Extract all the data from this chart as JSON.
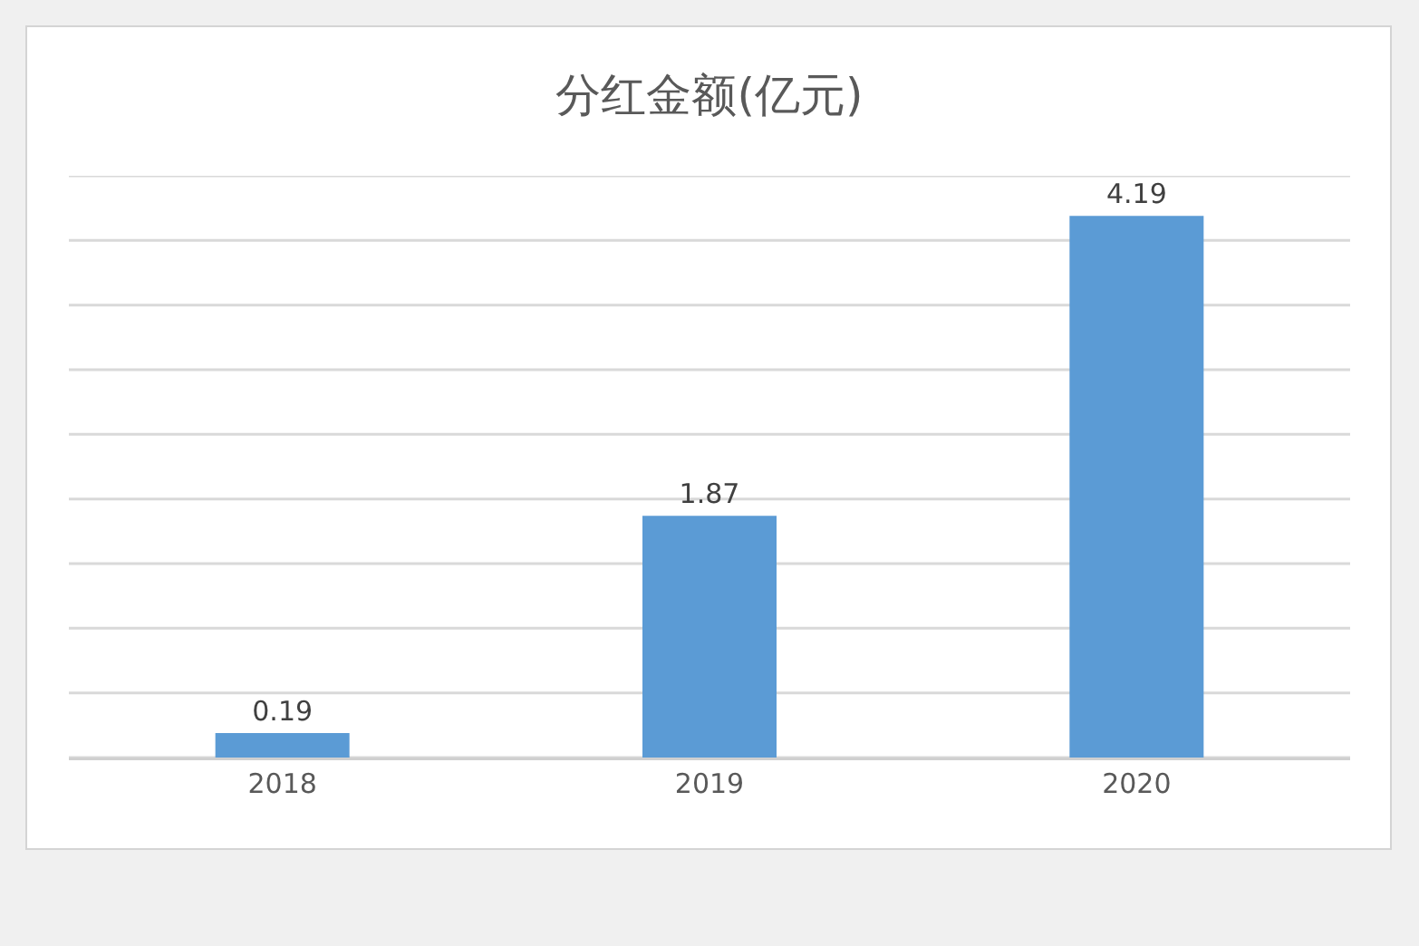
{
  "chart_data": {
    "type": "bar",
    "title": "分红金额(亿元)",
    "categories": [
      "2018",
      "2019",
      "2020"
    ],
    "values": [
      0.19,
      1.87,
      4.19
    ],
    "color": "#5b9bd5",
    "ylim": [
      0,
      4.5
    ],
    "yticks": [
      {
        "value": 0,
        "label": null
      },
      {
        "value": 0.5,
        "label": null
      },
      {
        "value": 1,
        "label": null
      },
      {
        "value": 1.5,
        "label": null
      },
      {
        "value": 2,
        "label": null
      },
      {
        "value": 2.5,
        "label": null
      },
      {
        "value": 3,
        "label": null
      },
      {
        "value": 3.5,
        "label": null
      },
      {
        "value": 4,
        "label": null
      },
      {
        "value": 4.5,
        "label": null
      }
    ],
    "grid": "y",
    "data_labels": true,
    "tick_labels": "x"
  }
}
